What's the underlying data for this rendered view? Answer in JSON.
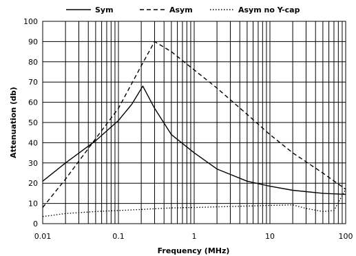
{
  "chart_data": {
    "type": "line",
    "title": "",
    "xlabel": "Frequency (MHz)",
    "ylabel": "Attenuation (db)",
    "x_scale": "log",
    "xlim": [
      0.01,
      100
    ],
    "ylim": [
      0,
      100
    ],
    "x_ticks": [
      "0.01",
      "0.1",
      "1",
      "10",
      "100"
    ],
    "y_ticks": [
      "0",
      "10",
      "20",
      "30",
      "40",
      "50",
      "60",
      "70",
      "80",
      "90",
      "100"
    ],
    "grid": true,
    "legend_position": "top",
    "series": [
      {
        "name": "Sym",
        "style": "solid",
        "color": "#000000",
        "x": [
          0.01,
          0.02,
          0.05,
          0.1,
          0.15,
          0.21,
          0.3,
          0.5,
          1,
          2,
          5,
          10,
          20,
          50,
          100
        ],
        "y": [
          21,
          30,
          41,
          51,
          59,
          68,
          57,
          44,
          35,
          27,
          21,
          18.5,
          16.5,
          15,
          14.5
        ]
      },
      {
        "name": "Asym",
        "style": "dashed",
        "color": "#000000",
        "x": [
          0.01,
          0.02,
          0.05,
          0.1,
          0.2,
          0.3,
          0.5,
          1,
          2,
          5,
          10,
          20,
          50,
          100
        ],
        "y": [
          8,
          22,
          42,
          57,
          78,
          90,
          85,
          76,
          67,
          54,
          44,
          35,
          25,
          17
        ]
      },
      {
        "name": "Asym no Y-cap",
        "style": "dotted",
        "color": "#000000",
        "x": [
          0.01,
          0.02,
          0.05,
          0.1,
          0.2,
          0.5,
          1,
          2,
          5,
          10,
          20,
          30,
          50,
          70,
          100
        ],
        "y": [
          3.5,
          5,
          6,
          6.5,
          7,
          7.8,
          8,
          8.3,
          8.7,
          9,
          9.3,
          7.5,
          6,
          6.5,
          17
        ]
      }
    ]
  }
}
